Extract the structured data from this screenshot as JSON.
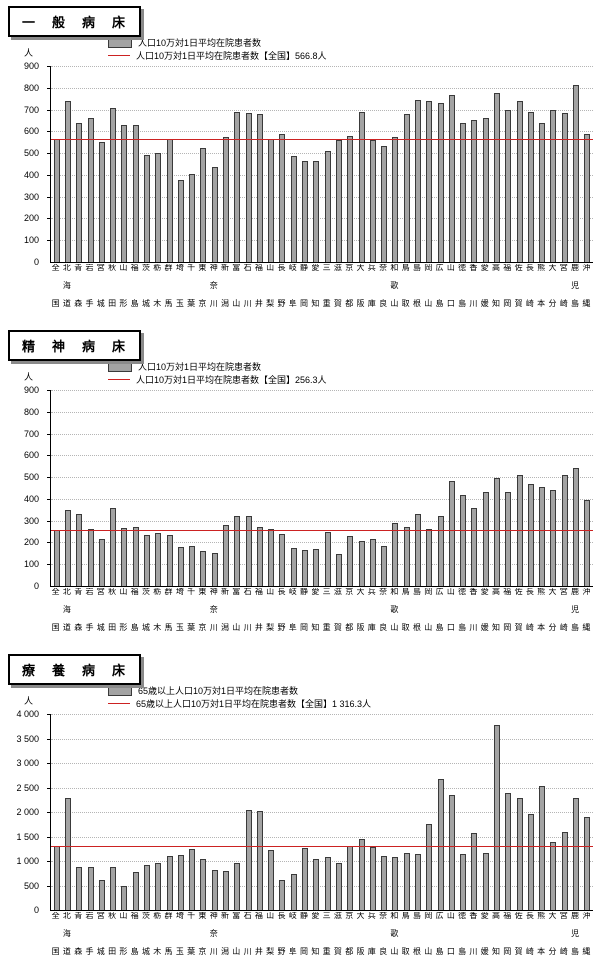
{
  "colors": {
    "bar_fill": "#a3a3a3",
    "bar_border": "#3a3a3a",
    "avg_line": "#cc2222",
    "grid": "#b5b5b5",
    "axis": "#000000"
  },
  "chart_data": [
    {
      "type": "bar",
      "title": "一　般　病　床",
      "unit": "人",
      "legend": {
        "bar_label": "人口10万対1日平均在院患者数",
        "line_label": "人口10万対1日平均在院患者数【全国】566.8人"
      },
      "average": 566.8,
      "ylim": [
        0,
        900
      ],
      "ytick_values": [
        0,
        100,
        200,
        300,
        400,
        500,
        600,
        700,
        800,
        900
      ],
      "ytick_labels": [
        "0",
        "100",
        "200",
        "300",
        "400",
        "500",
        "600",
        "700",
        "800",
        "900"
      ],
      "categories": [
        "全国",
        "北海道",
        "青森",
        "岩手",
        "宮城",
        "秋田",
        "山形",
        "福島",
        "茨城",
        "栃木",
        "群馬",
        "埼玉",
        "千葉",
        "東京",
        "神奈川",
        "新潟",
        "富山",
        "石川",
        "福井",
        "山梨",
        "長野",
        "岐阜",
        "静岡",
        "愛知",
        "三重",
        "滋賀",
        "京都",
        "大阪",
        "兵庫",
        "奈良",
        "和歌山",
        "鳥取",
        "島根",
        "岡山",
        "広島",
        "山口",
        "徳島",
        "香川",
        "愛媛",
        "高知",
        "福岡",
        "佐賀",
        "長崎",
        "熊本",
        "大分",
        "宮崎",
        "鹿児島",
        "沖縄"
      ],
      "values": [
        565,
        740,
        640,
        660,
        550,
        705,
        630,
        630,
        490,
        500,
        565,
        375,
        405,
        525,
        435,
        575,
        690,
        685,
        680,
        565,
        590,
        485,
        465,
        465,
        510,
        560,
        580,
        690,
        560,
        535,
        575,
        680,
        745,
        740,
        730,
        765,
        640,
        650,
        660,
        775,
        700,
        740,
        690,
        640,
        700,
        685,
        815,
        590
      ]
    },
    {
      "type": "bar",
      "title": "精　神　病　床",
      "unit": "人",
      "legend": {
        "bar_label": "人口10万対1日平均在院患者数",
        "line_label": "人口10万対1日平均在院患者数【全国】256.3人"
      },
      "average": 256.3,
      "ylim": [
        0,
        900
      ],
      "ytick_values": [
        0,
        100,
        200,
        300,
        400,
        500,
        600,
        700,
        800,
        900
      ],
      "ytick_labels": [
        "0",
        "100",
        "200",
        "300",
        "400",
        "500",
        "600",
        "700",
        "800",
        "900"
      ],
      "categories": [
        "全国",
        "北海道",
        "青森",
        "岩手",
        "宮城",
        "秋田",
        "山形",
        "福島",
        "茨城",
        "栃木",
        "群馬",
        "埼玉",
        "千葉",
        "東京",
        "神奈川",
        "新潟",
        "富山",
        "石川",
        "福井",
        "山梨",
        "長野",
        "岐阜",
        "静岡",
        "愛知",
        "三重",
        "滋賀",
        "京都",
        "大阪",
        "兵庫",
        "奈良",
        "和歌山",
        "鳥取",
        "島根",
        "岡山",
        "広島",
        "山口",
        "徳島",
        "香川",
        "愛媛",
        "高知",
        "福岡",
        "佐賀",
        "長崎",
        "熊本",
        "大分",
        "宮崎",
        "鹿児島",
        "沖縄"
      ],
      "values": [
        255,
        350,
        330,
        260,
        215,
        360,
        265,
        270,
        235,
        245,
        235,
        180,
        185,
        160,
        150,
        280,
        320,
        320,
        270,
        260,
        240,
        175,
        165,
        170,
        250,
        145,
        230,
        205,
        215,
        185,
        290,
        270,
        330,
        260,
        320,
        480,
        420,
        360,
        430,
        495,
        430,
        510,
        470,
        455,
        440,
        510,
        540,
        395
      ]
    },
    {
      "type": "bar",
      "title": "療　養　病　床",
      "unit": "人",
      "legend": {
        "bar_label": "65歳以上人口10万対1日平均在院患者数",
        "line_label": "65歳以上人口10万対1日平均在院患者数【全国】1 316.3人"
      },
      "average": 1316.3,
      "ylim": [
        0,
        4000
      ],
      "ytick_values": [
        0,
        500,
        1000,
        1500,
        2000,
        2500,
        3000,
        3500,
        4000
      ],
      "ytick_labels": [
        "0",
        "500",
        "1 000",
        "1 500",
        "2 000",
        "2 500",
        "3 000",
        "3 500",
        "4 000"
      ],
      "categories": [
        "全国",
        "北海道",
        "青森",
        "岩手",
        "宮城",
        "秋田",
        "山形",
        "福島",
        "茨城",
        "栃木",
        "群馬",
        "埼玉",
        "千葉",
        "東京",
        "神奈川",
        "新潟",
        "富山",
        "石川",
        "福井",
        "山梨",
        "長野",
        "岐阜",
        "静岡",
        "愛知",
        "三重",
        "滋賀",
        "京都",
        "大阪",
        "兵庫",
        "奈良",
        "和歌山",
        "鳥取",
        "島根",
        "岡山",
        "広島",
        "山口",
        "徳島",
        "香川",
        "愛媛",
        "高知",
        "福岡",
        "佐賀",
        "長崎",
        "熊本",
        "大分",
        "宮崎",
        "鹿児島",
        "沖縄"
      ],
      "values": [
        1315,
        2280,
        870,
        880,
        620,
        880,
        480,
        780,
        920,
        950,
        1100,
        1130,
        1250,
        1050,
        820,
        800,
        950,
        2050,
        2020,
        1230,
        620,
        730,
        1270,
        1050,
        1080,
        950,
        1300,
        1450,
        1280,
        1100,
        1080,
        1160,
        1150,
        1750,
        2680,
        2350,
        1150,
        1570,
        1160,
        3780,
        2380,
        2280,
        1950,
        2530,
        1380,
        1600,
        2280,
        1900
      ]
    }
  ]
}
